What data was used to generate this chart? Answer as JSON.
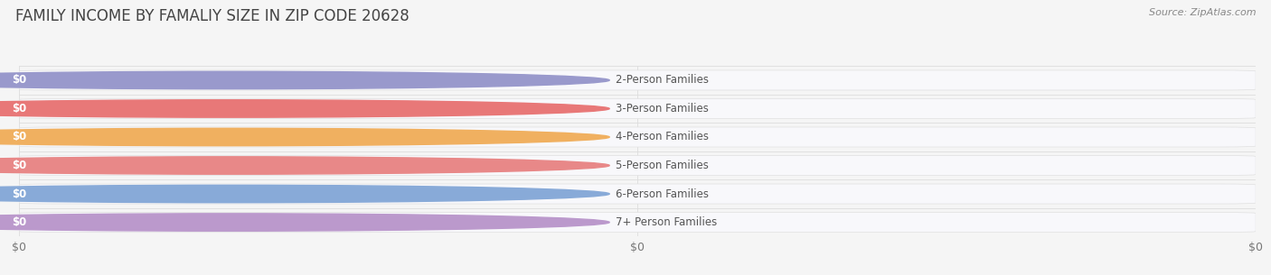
{
  "title": "FAMILY INCOME BY FAMALIY SIZE IN ZIP CODE 20628",
  "source_text": "Source: ZipAtlas.com",
  "categories": [
    "2-Person Families",
    "3-Person Families",
    "4-Person Families",
    "5-Person Families",
    "6-Person Families",
    "7+ Person Families"
  ],
  "values": [
    0,
    0,
    0,
    0,
    0,
    0
  ],
  "bar_colors": [
    "#9999cc",
    "#e87878",
    "#f0b060",
    "#e88888",
    "#88aad8",
    "#bb99cc"
  ],
  "bg_color": "#f5f5f5",
  "title_color": "#444444",
  "label_color": "#555555",
  "source_color": "#888888",
  "grid_color": "#dddddd",
  "bar_bg_color": "#efefef",
  "title_fontsize": 12,
  "label_fontsize": 8.5,
  "value_fontsize": 8.5,
  "source_fontsize": 8,
  "xtick_labels": [
    "$0",
    "$0",
    "$0"
  ],
  "xtick_positions": [
    0.0,
    0.5,
    1.0
  ],
  "xlim": [
    0.0,
    1.0
  ],
  "max_value": 1
}
